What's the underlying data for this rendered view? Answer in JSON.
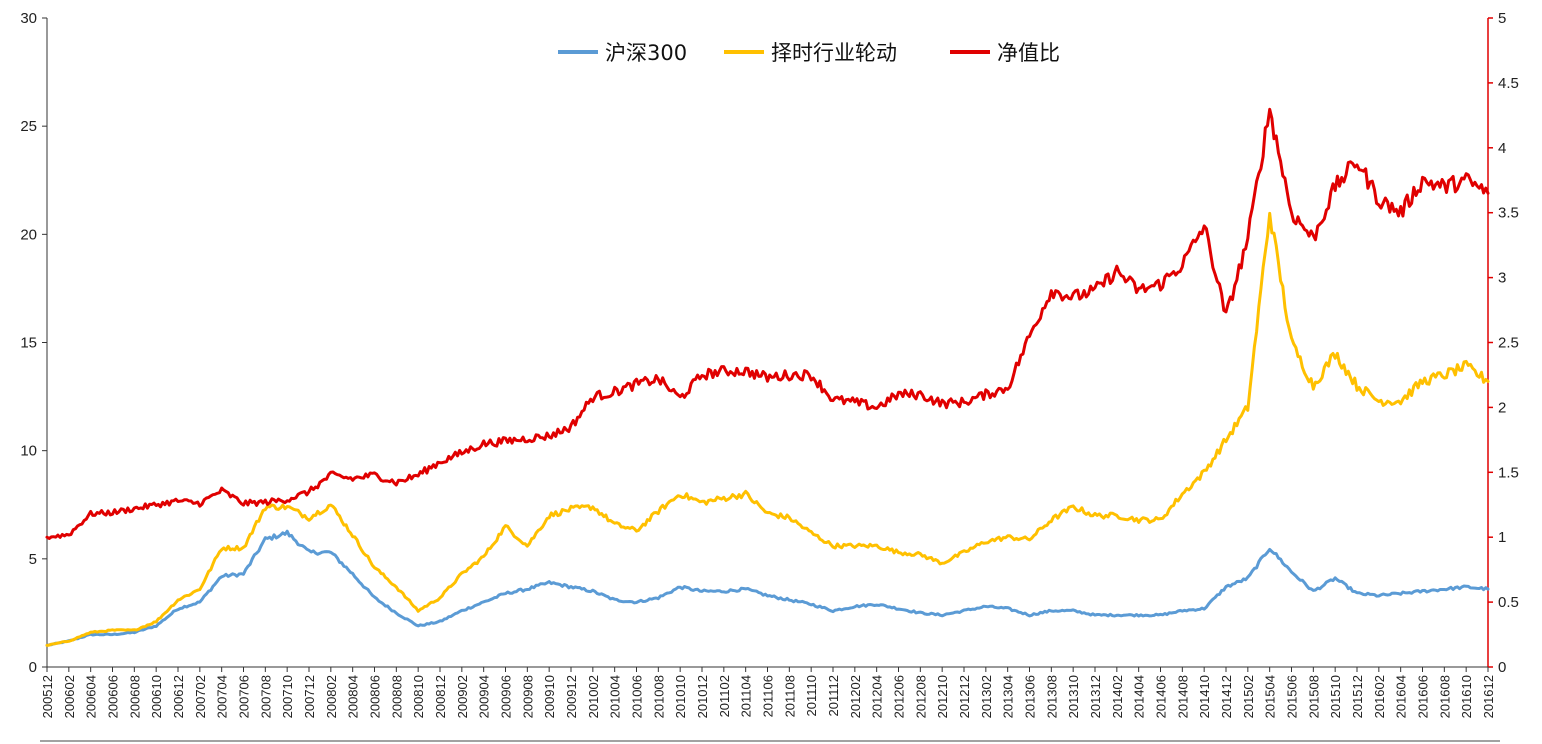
{
  "chart_data": {
    "type": "line",
    "title": "",
    "xlabel": "",
    "ylabel": "",
    "legend_position": "top-center",
    "grid": false,
    "y_left": {
      "min": 0,
      "max": 30,
      "ticks": [
        "0",
        "5",
        "10",
        "15",
        "20",
        "25",
        "30"
      ]
    },
    "y_right": {
      "min": 0,
      "max": 5,
      "ticks": [
        "0",
        "0.5",
        "1",
        "1.5",
        "2",
        "2.5",
        "3",
        "3.5",
        "4",
        "4.5",
        "5"
      ],
      "color": "#e00000"
    },
    "x_ticks": [
      "200512",
      "200602",
      "200604",
      "200606",
      "200608",
      "200610",
      "200612",
      "200702",
      "200704",
      "200706",
      "200708",
      "200710",
      "200712",
      "200802",
      "200804",
      "200806",
      "200808",
      "200810",
      "200812",
      "200902",
      "200904",
      "200906",
      "200908",
      "200910",
      "200912",
      "201002",
      "201004",
      "201006",
      "201008",
      "201010",
      "201012",
      "201102",
      "201104",
      "201106",
      "201108",
      "201110",
      "201112",
      "201202",
      "201204",
      "201206",
      "201208",
      "201210",
      "201212",
      "201302",
      "201304",
      "201306",
      "201308",
      "201310",
      "201312",
      "201402",
      "201404",
      "201406",
      "201408",
      "201410",
      "201412",
      "201502",
      "201504",
      "201506",
      "201508",
      "201510",
      "201512",
      "201602",
      "201604",
      "201606",
      "201608",
      "201610",
      "201612"
    ],
    "series": [
      {
        "name": "沪深300",
        "axis": "left",
        "color": "#5b9bd5",
        "values": [
          1.0,
          1.2,
          1.5,
          1.5,
          1.6,
          1.9,
          2.7,
          3.0,
          4.2,
          4.3,
          5.9,
          6.2,
          5.3,
          5.3,
          4.3,
          3.2,
          2.5,
          1.9,
          2.1,
          2.6,
          3.0,
          3.4,
          3.6,
          3.9,
          3.7,
          3.5,
          3.1,
          3.0,
          3.2,
          3.7,
          3.5,
          3.5,
          3.6,
          3.3,
          3.1,
          2.9,
          2.6,
          2.8,
          2.9,
          2.7,
          2.5,
          2.4,
          2.6,
          2.8,
          2.7,
          2.4,
          2.6,
          2.6,
          2.4,
          2.4,
          2.4,
          2.4,
          2.6,
          2.7,
          3.7,
          4.1,
          5.5,
          4.4,
          3.5,
          4.1,
          3.4,
          3.3,
          3.4,
          3.5,
          3.6,
          3.7,
          3.6
        ]
      },
      {
        "name": "择时行业轮动",
        "axis": "left",
        "color": "#ffc000",
        "values": [
          1.0,
          1.2,
          1.6,
          1.7,
          1.7,
          2.1,
          3.1,
          3.6,
          5.5,
          5.5,
          7.4,
          7.4,
          6.9,
          7.5,
          6.1,
          4.6,
          3.7,
          2.6,
          3.2,
          4.3,
          5.1,
          6.5,
          5.6,
          7.0,
          7.3,
          7.4,
          6.6,
          6.3,
          7.2,
          8.0,
          7.6,
          7.8,
          8.0,
          7.1,
          6.9,
          6.2,
          5.6,
          5.6,
          5.6,
          5.3,
          5.2,
          4.8,
          5.3,
          5.8,
          6.0,
          5.9,
          6.8,
          7.4,
          7.0,
          7.0,
          6.8,
          6.8,
          8.0,
          9.0,
          10.5,
          12.0,
          21.0,
          15.0,
          13.0,
          14.5,
          13.0,
          12.3,
          12.3,
          13.2,
          13.5,
          13.9,
          13.2
        ]
      },
      {
        "name": "净值比",
        "axis": "right",
        "color": "#e00000",
        "values": [
          1.0,
          1.02,
          1.18,
          1.19,
          1.22,
          1.25,
          1.28,
          1.26,
          1.36,
          1.26,
          1.27,
          1.29,
          1.35,
          1.48,
          1.45,
          1.48,
          1.42,
          1.48,
          1.58,
          1.65,
          1.72,
          1.74,
          1.76,
          1.78,
          1.85,
          2.08,
          2.12,
          2.18,
          2.22,
          2.07,
          2.25,
          2.28,
          2.28,
          2.23,
          2.25,
          2.25,
          2.06,
          2.04,
          2.0,
          2.1,
          2.1,
          2.03,
          2.04,
          2.1,
          2.15,
          2.55,
          2.9,
          2.85,
          2.9,
          3.05,
          2.9,
          2.95,
          3.1,
          3.4,
          2.7,
          3.3,
          4.3,
          3.5,
          3.3,
          3.7,
          3.9,
          3.6,
          3.5,
          3.75,
          3.7,
          3.75,
          3.65
        ]
      }
    ]
  }
}
